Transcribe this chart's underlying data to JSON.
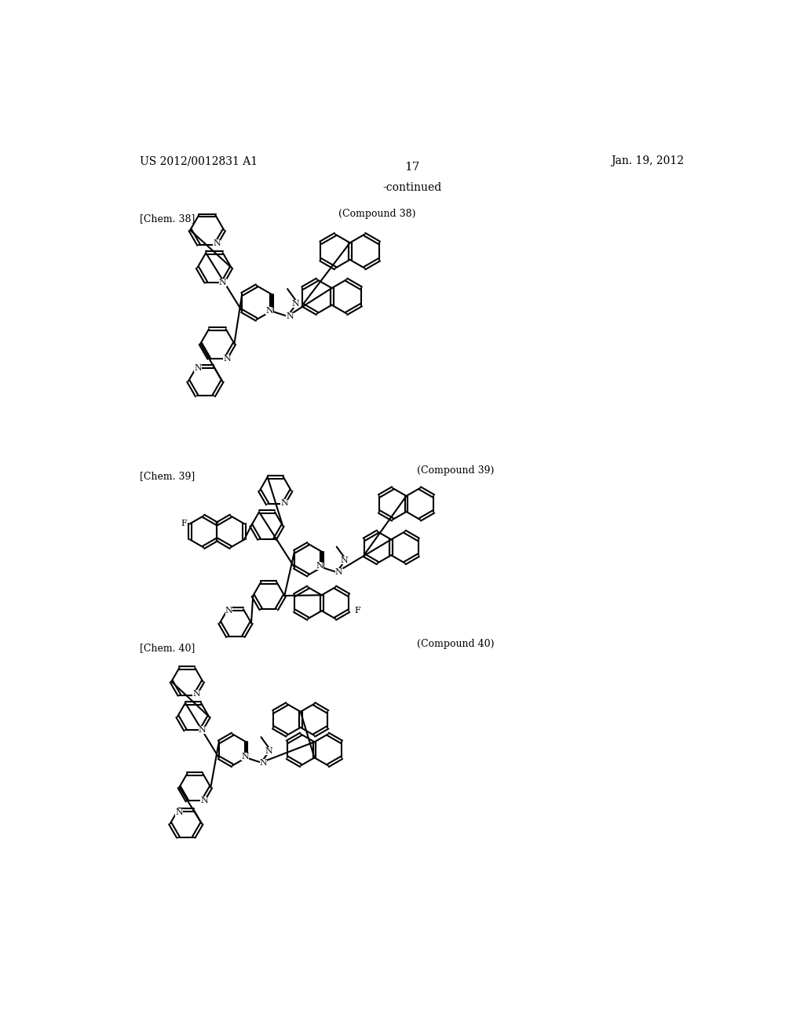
{
  "page_number": "17",
  "patent_number": "US 2012/0012831 A1",
  "patent_date": "Jan. 19, 2012",
  "continued_text": "-continued",
  "background_color": "#ffffff",
  "text_color": "#000000"
}
